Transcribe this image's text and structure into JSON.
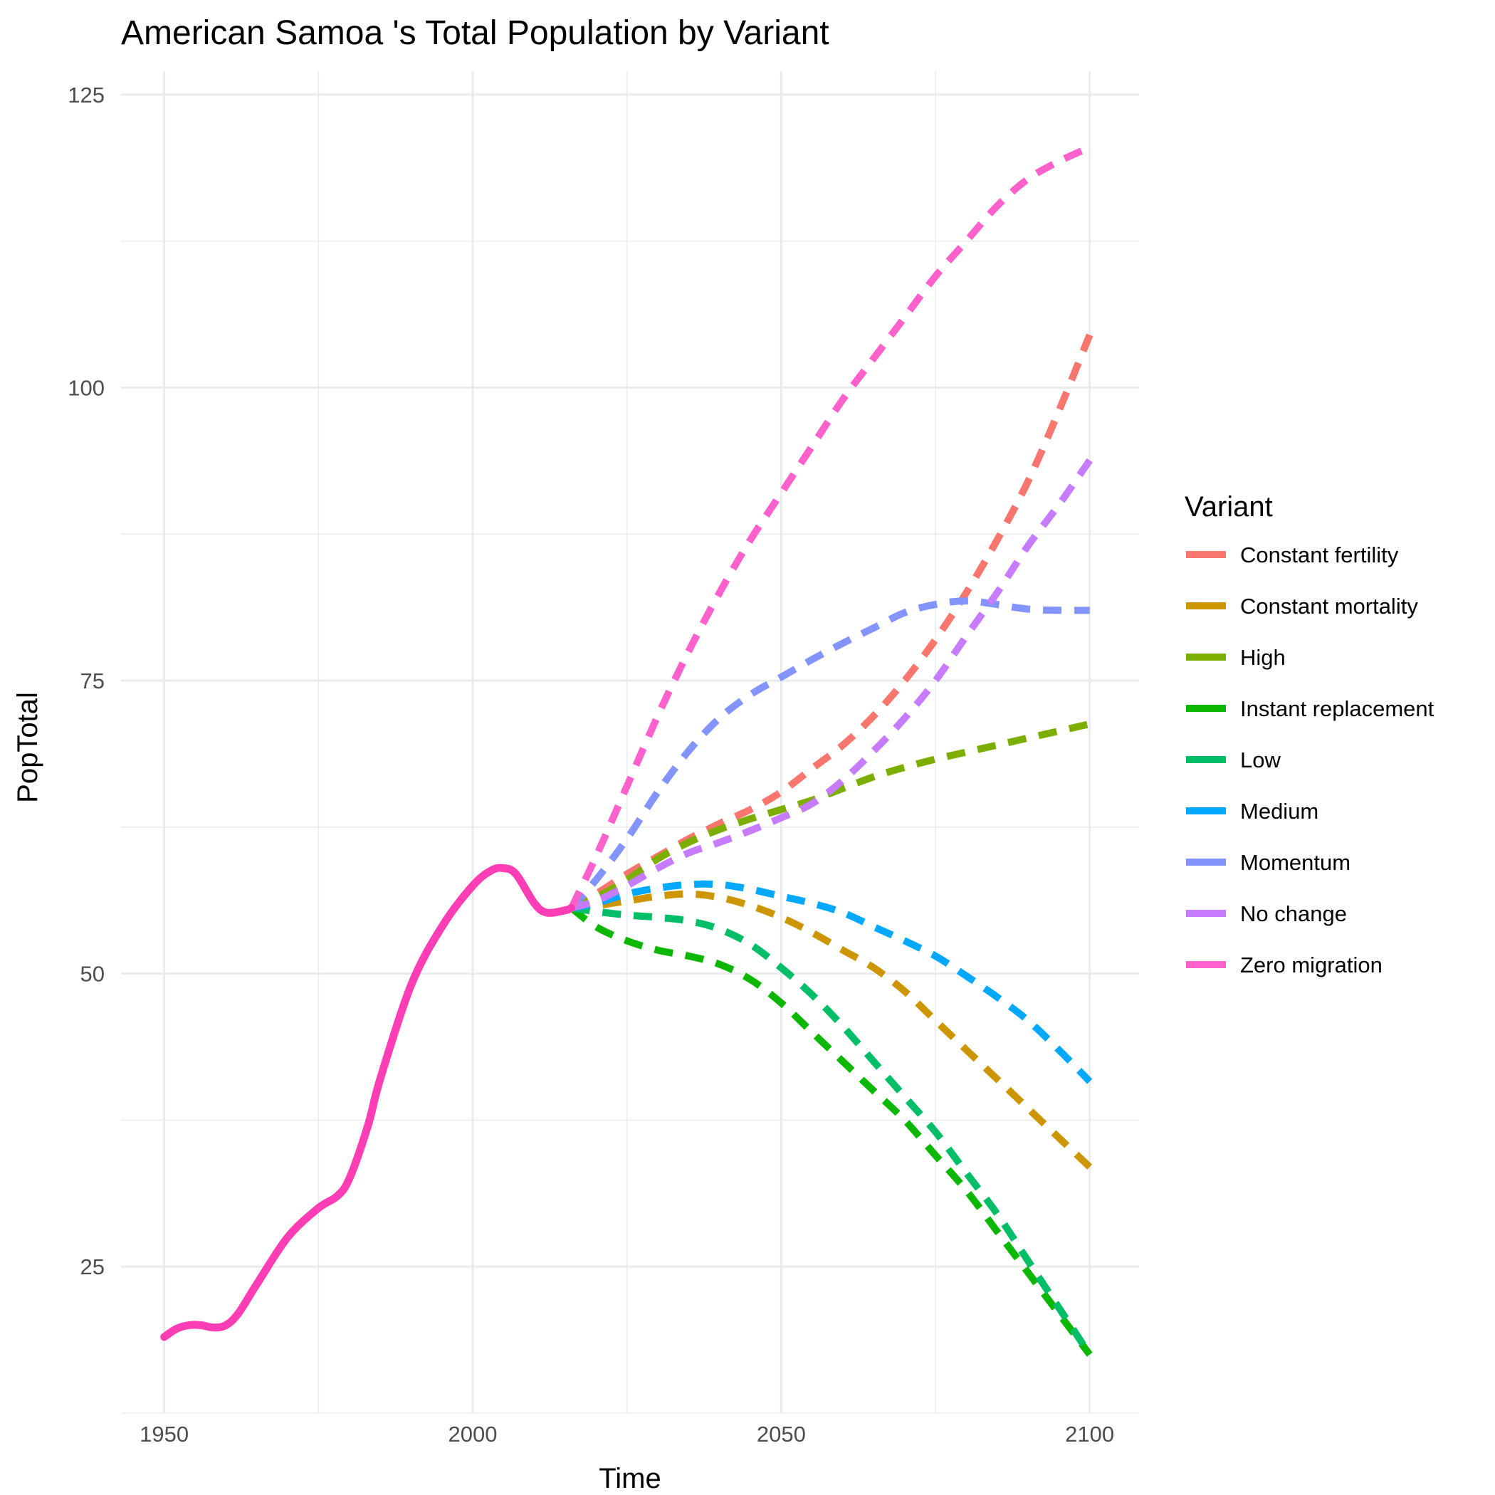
{
  "chart_data": {
    "type": "line",
    "title": "American Samoa 's Total Population by Variant",
    "xlabel": "Time",
    "ylabel": "PopTotal",
    "xlim": [
      1943,
      2108
    ],
    "ylim": [
      12.5,
      127
    ],
    "x_ticks": [
      1950,
      2000,
      2050,
      2100
    ],
    "y_ticks": [
      25,
      50,
      75,
      100,
      125
    ],
    "grid": true,
    "legend": {
      "title": "Variant",
      "position": "right"
    },
    "historical": {
      "color": "#FF3EB5",
      "x": [
        1950,
        1952,
        1954,
        1956,
        1958,
        1960,
        1962,
        1965,
        1970,
        1975,
        1978,
        1980,
        1983,
        1985,
        1990,
        1995,
        2000,
        2003,
        2005,
        2007,
        2010,
        2012,
        2015,
        2016
      ],
      "y": [
        19.0,
        19.7,
        20.0,
        20.0,
        19.8,
        20.0,
        21.0,
        23.5,
        27.5,
        30.0,
        31.0,
        32.5,
        37.0,
        41.0,
        49.0,
        54.0,
        57.5,
        58.8,
        59.0,
        58.5,
        56.0,
        55.2,
        55.4,
        55.6
      ]
    },
    "series": [
      {
        "name": "Constant fertility",
        "color": "#F8766D",
        "x": [
          2016,
          2020,
          2025,
          2030,
          2035,
          2040,
          2045,
          2050,
          2055,
          2060,
          2065,
          2070,
          2075,
          2080,
          2085,
          2090,
          2095,
          2100
        ],
        "y": [
          55.6,
          56.8,
          58.5,
          60.0,
          61.5,
          62.8,
          64.0,
          65.5,
          67.5,
          69.5,
          72.0,
          75.0,
          78.5,
          82.5,
          87.0,
          92.0,
          98.0,
          104.5
        ]
      },
      {
        "name": "Constant mortality",
        "color": "#CD9600",
        "x": [
          2016,
          2020,
          2025,
          2030,
          2035,
          2040,
          2045,
          2050,
          2055,
          2060,
          2065,
          2070,
          2075,
          2080,
          2085,
          2090,
          2095,
          2100
        ],
        "y": [
          55.6,
          55.8,
          56.2,
          56.6,
          56.8,
          56.5,
          55.8,
          54.8,
          53.5,
          52.0,
          50.5,
          48.5,
          46.0,
          43.5,
          41.0,
          38.5,
          36.0,
          33.5
        ]
      },
      {
        "name": "High",
        "color": "#7CAE00",
        "x": [
          2016,
          2020,
          2025,
          2030,
          2035,
          2040,
          2045,
          2050,
          2055,
          2060,
          2065,
          2070,
          2075,
          2080,
          2085,
          2090,
          2095,
          2100
        ],
        "y": [
          55.6,
          56.5,
          58.0,
          59.8,
          61.2,
          62.3,
          63.2,
          64.0,
          64.8,
          65.8,
          66.8,
          67.6,
          68.3,
          68.9,
          69.5,
          70.1,
          70.7,
          71.3
        ]
      },
      {
        "name": "Instant replacement",
        "color": "#0CB702",
        "x": [
          2016,
          2020,
          2025,
          2030,
          2035,
          2040,
          2045,
          2050,
          2055,
          2060,
          2065,
          2070,
          2075,
          2080,
          2085,
          2090,
          2095,
          2100
        ],
        "y": [
          55.6,
          54.0,
          52.8,
          52.0,
          51.5,
          50.8,
          49.5,
          47.5,
          45.0,
          42.5,
          40.0,
          37.5,
          34.5,
          31.5,
          28.0,
          24.5,
          21.0,
          17.5
        ]
      },
      {
        "name": "Low",
        "color": "#00BE67",
        "x": [
          2016,
          2020,
          2025,
          2030,
          2035,
          2040,
          2045,
          2050,
          2055,
          2060,
          2065,
          2070,
          2075,
          2080,
          2085,
          2090,
          2095,
          2100
        ],
        "y": [
          55.6,
          55.3,
          55.0,
          54.8,
          54.5,
          53.8,
          52.5,
          50.5,
          48.2,
          45.5,
          42.5,
          39.5,
          36.5,
          33.0,
          29.5,
          25.5,
          21.5,
          17.5
        ]
      },
      {
        "name": "Medium",
        "color": "#00A9FF",
        "x": [
          2016,
          2020,
          2025,
          2030,
          2035,
          2040,
          2045,
          2050,
          2055,
          2060,
          2065,
          2070,
          2075,
          2080,
          2085,
          2090,
          2095,
          2100
        ],
        "y": [
          55.6,
          56.0,
          56.8,
          57.3,
          57.6,
          57.6,
          57.2,
          56.6,
          56.0,
          55.2,
          54.0,
          52.8,
          51.5,
          49.8,
          48.0,
          46.0,
          43.5,
          40.8
        ]
      },
      {
        "name": "Momentum",
        "color": "#8494FF",
        "x": [
          2016,
          2020,
          2025,
          2030,
          2035,
          2040,
          2045,
          2050,
          2055,
          2060,
          2065,
          2070,
          2075,
          2080,
          2085,
          2090,
          2095,
          2100
        ],
        "y": [
          55.6,
          58.0,
          61.5,
          65.5,
          69.0,
          71.8,
          73.8,
          75.3,
          76.8,
          78.2,
          79.5,
          80.8,
          81.5,
          81.8,
          81.5,
          81.1,
          81.0,
          81.0
        ]
      },
      {
        "name": "No change",
        "color": "#C77CFF",
        "x": [
          2016,
          2020,
          2025,
          2030,
          2035,
          2040,
          2045,
          2050,
          2055,
          2060,
          2065,
          2070,
          2075,
          2080,
          2085,
          2090,
          2095,
          2100
        ],
        "y": [
          55.6,
          56.2,
          57.5,
          59.0,
          60.3,
          61.2,
          62.2,
          63.3,
          64.5,
          66.5,
          69.0,
          71.8,
          75.0,
          78.8,
          82.5,
          86.5,
          90.0,
          93.8
        ]
      },
      {
        "name": "Zero migration",
        "color": "#FF61CC",
        "x": [
          2016,
          2020,
          2025,
          2030,
          2035,
          2040,
          2045,
          2050,
          2055,
          2060,
          2065,
          2070,
          2075,
          2080,
          2085,
          2090,
          2095,
          2100
        ],
        "y": [
          55.6,
          60.0,
          66.0,
          72.0,
          77.5,
          82.5,
          87.0,
          91.0,
          95.0,
          99.0,
          102.5,
          106.0,
          109.5,
          112.5,
          115.5,
          117.8,
          119.3,
          120.5
        ]
      }
    ]
  }
}
